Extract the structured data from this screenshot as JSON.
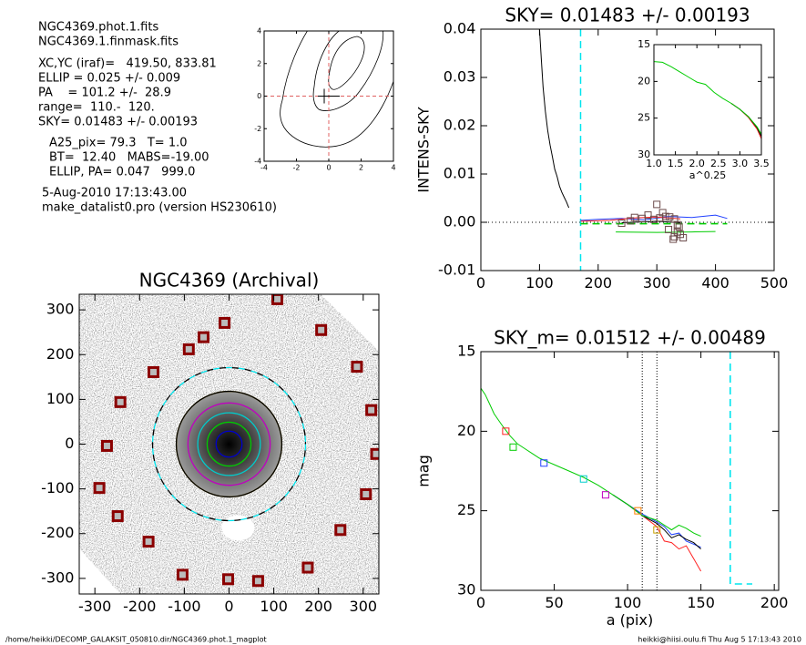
{
  "info": {
    "lines": [
      "NGC4369.phot.1.fits",
      "NGC4369.1.finmask.fits",
      "XC,YC (iraf)=   419.50, 833.81",
      "ELLIP = 0.025 +/- 0.009",
      "PA    = 101.2 +/-  28.9",
      "range=  110.-  120.",
      "SKY= 0.01483 +/- 0.00193",
      "A25_pix= 79.3   T= 1.0",
      "BT=  12.40   MABS=-19.00",
      "ELLIP, PA= 0.047   999.0",
      "5-Aug-2010 17:13:43.00",
      "make_datalist0.pro (version HS230610)"
    ]
  },
  "footer": {
    "left": "/home/heikki/DECOMP_GALAKSIT_050810.dir/NGC4369.phot.1_magplot",
    "right": "heikki@hiisi.oulu.fi  Thu Aug  5 17:13:43 2010"
  },
  "chart_data": [
    {
      "type": "contour",
      "xlim": [
        -4,
        4
      ],
      "ylim": [
        -4,
        4
      ],
      "xticks": [
        -4,
        -2,
        0,
        2,
        4
      ],
      "yticks": [
        -4,
        -2,
        0,
        2,
        4
      ]
    },
    {
      "type": "line",
      "title": "SKY= 0.01483 +/- 0.00193",
      "ylabel": "INTENS-SKY",
      "xlim": [
        0,
        500
      ],
      "ylim": [
        -0.01,
        0.04
      ],
      "xticks": [
        0,
        100,
        200,
        300,
        400,
        500
      ],
      "yticks": [
        -0.01,
        {
          "value": 0,
          "label": "0.00"
        },
        0.01,
        0.02,
        0.03,
        0.04
      ],
      "vlines": [
        {
          "x": 170,
          "color": "#00e5ee",
          "dash": true
        }
      ],
      "hlines": [
        0
      ],
      "series": [
        {
          "color": "#000000",
          "x": [
            100,
            103,
            106,
            110,
            114,
            118,
            122,
            126,
            130,
            134,
            138,
            142,
            146,
            150
          ],
          "values": [
            0.04,
            0.034,
            0.028,
            0.023,
            0.019,
            0.016,
            0.0135,
            0.011,
            0.0095,
            0.0075,
            0.0062,
            0.0052,
            0.0042,
            0.003
          ]
        },
        {
          "color": "#2040ff",
          "x": [
            170,
            200,
            240,
            280,
            320,
            360,
            400,
            420
          ],
          "values": [
            0.0004,
            0.0006,
            0.0008,
            0.0005,
            0.0012,
            0.001,
            0.0015,
            0.0008
          ]
        },
        {
          "color": "#ff2020",
          "x": [
            170,
            220,
            260,
            300,
            340
          ],
          "values": [
            0.0002,
            0.0004,
            0.0009,
            0.0011,
            0.0007
          ]
        },
        {
          "color": "#00cc00",
          "x": [
            230,
            300,
            360,
            400
          ],
          "values": [
            -0.002,
            -0.0021,
            -0.002,
            -0.0019
          ]
        },
        {
          "color": "#00cc00",
          "dash": true,
          "x": [
            170,
            420
          ],
          "values": [
            -0.0003,
            -0.0003
          ]
        },
        {
          "color": "#000000",
          "x": [
            240,
            300,
            340
          ],
          "values": [
            -0.0001,
            0.0002,
            -0.0001
          ]
        },
        {
          "color": "#6b4a4a",
          "marker": "square",
          "x": [
            240,
            255,
            262,
            275,
            285,
            295,
            305,
            315,
            322,
            330,
            335,
            338,
            340,
            345,
            300,
            310,
            320,
            330,
            328,
            335
          ],
          "values": [
            -0.0002,
            0.0003,
            0.001,
            0.0008,
            0.0015,
            0.0006,
            0.0009,
            0.0012,
            0.0011,
            0.0007,
            -0.0005,
            -0.001,
            -0.0025,
            -0.0032,
            0.0037,
            0.002,
            -0.0015,
            -0.003,
            -0.0035,
            -0.002
          ]
        }
      ]
    },
    {
      "type": "line",
      "xlabel": "a^0.25",
      "xlim": [
        1,
        3.5
      ],
      "ylim": [
        15,
        30
      ],
      "y_inverted": true,
      "xticks": [
        {
          "value": 1,
          "label": "1.0"
        },
        1.5,
        {
          "value": 2,
          "label": "2.0"
        },
        2.5,
        {
          "value": 3,
          "label": "3.0"
        },
        3.5
      ],
      "yticks": [
        15,
        20,
        25,
        30
      ],
      "series": [
        {
          "color": "#ff2020",
          "x": [
            2.8,
            3.0,
            3.2,
            3.4,
            3.5
          ],
          "values": [
            23.0,
            23.8,
            24.9,
            26.5,
            27.8
          ]
        },
        {
          "color": "#000000",
          "x": [
            2.8,
            3.0,
            3.2,
            3.4,
            3.5
          ],
          "values": [
            23.0,
            23.8,
            24.8,
            26.3,
            27.5
          ]
        },
        {
          "color": "#00cc00",
          "x": [
            1.0,
            1.2,
            1.4,
            1.6,
            1.8,
            2.0,
            2.2,
            2.4,
            2.6,
            2.8,
            3.0,
            3.2,
            3.4,
            3.5
          ],
          "values": [
            17.3,
            17.4,
            18.0,
            18.7,
            19.4,
            20.1,
            20.4,
            21.5,
            22.3,
            23.0,
            23.8,
            24.8,
            26.2,
            27.2
          ]
        }
      ]
    },
    {
      "type": "image",
      "title": "NGC4369 (Archival)",
      "xlim": [
        -335,
        335
      ],
      "ylim": [
        -335,
        335
      ],
      "xticks": [
        -300,
        -200,
        -100,
        0,
        100,
        200,
        300
      ],
      "yticks": [
        -300,
        -200,
        -100,
        0,
        100,
        200,
        300
      ],
      "ellipses": [
        {
          "r": 171,
          "color": "#00e5ee",
          "dash": true
        },
        {
          "r": 171,
          "color": "#000000",
          "dash": true
        },
        {
          "r": 118,
          "color": "#c8a000"
        },
        {
          "r": 118,
          "color": "#000000"
        },
        {
          "r": 92,
          "color": "#c000c0"
        },
        {
          "r": 70,
          "color": "#00cccc"
        },
        {
          "r": 49,
          "color": "#00cc00"
        },
        {
          "r": 29,
          "color": "#0000cc"
        }
      ],
      "series": [
        {
          "color": "#8b0000",
          "marker": "square",
          "x": [
            108,
            206,
            -10,
            -57,
            -90,
            -169,
            286,
            -243,
            318,
            -273,
            329,
            -290,
            306,
            -249,
            249,
            -180,
            176,
            -104,
            -2,
            65
          ],
          "values": [
            324,
            255,
            271,
            239,
            212,
            161,
            173,
            94,
            76,
            -4,
            -22,
            -98,
            -112,
            -161,
            -192,
            -218,
            -276,
            -292,
            -302,
            -306
          ]
        }
      ]
    },
    {
      "type": "line",
      "title": "SKY_m=  0.01512 +/- 0.00489",
      "xlabel": "a (pix)",
      "ylabel": "mag",
      "xlim": [
        0,
        203
      ],
      "ylim": [
        15,
        30
      ],
      "y_inverted": true,
      "xticks": [
        0,
        50,
        100,
        150,
        200
      ],
      "yticks": [
        15,
        20,
        25,
        30
      ],
      "vlines": [
        {
          "x": 110,
          "color": "#000000",
          "dot": true
        },
        {
          "x": 120,
          "color": "#000000",
          "dot": true
        }
      ],
      "series": [
        {
          "color": "#ff2020",
          "x": [
            110,
            120,
            125,
            130,
            135,
            140,
            145,
            150
          ],
          "values": [
            25.3,
            26.0,
            26.9,
            27.0,
            27.4,
            27.2,
            28.0,
            28.8
          ]
        },
        {
          "color": "#2040ff",
          "x": [
            90,
            100,
            110,
            120,
            125,
            130,
            135,
            140,
            145,
            150
          ],
          "values": [
            24.0,
            24.6,
            25.2,
            25.7,
            26.0,
            26.5,
            26.4,
            26.9,
            27.1,
            27.3
          ]
        },
        {
          "color": "#000000",
          "x": [
            90,
            100,
            110,
            120,
            125,
            130,
            135,
            140,
            145,
            150
          ],
          "values": [
            24.0,
            24.6,
            25.3,
            25.8,
            26.2,
            26.7,
            26.5,
            26.8,
            27.0,
            27.4
          ]
        },
        {
          "color": "#00cc00",
          "x": [
            0,
            3,
            6,
            9,
            12,
            15,
            20,
            25,
            30,
            35,
            40,
            50,
            60,
            70,
            80,
            90,
            100,
            110,
            120,
            125,
            130,
            135,
            140,
            145,
            150
          ],
          "values": [
            17.3,
            17.7,
            18.3,
            18.9,
            19.3,
            19.7,
            20.3,
            20.8,
            21.1,
            21.4,
            21.7,
            22.1,
            22.5,
            22.9,
            23.4,
            24.0,
            24.6,
            25.3,
            25.6,
            25.9,
            26.2,
            25.9,
            26.1,
            26.4,
            26.6
          ]
        },
        {
          "color": "#00e5ee",
          "dash": true,
          "x": [
            170,
            170,
            185
          ],
          "values": [
            15,
            29.6,
            29.6
          ]
        },
        {
          "marker": "square",
          "colors": [
            "#ff2020",
            "#00cc00",
            "#2040ff",
            "#00cccc",
            "#c000c0",
            "#ff8000",
            "#c8a000"
          ],
          "x": [
            17,
            22,
            43,
            70,
            85,
            107,
            120
          ],
          "values": [
            20,
            21,
            22,
            23,
            24,
            25,
            26.2
          ]
        }
      ]
    }
  ]
}
